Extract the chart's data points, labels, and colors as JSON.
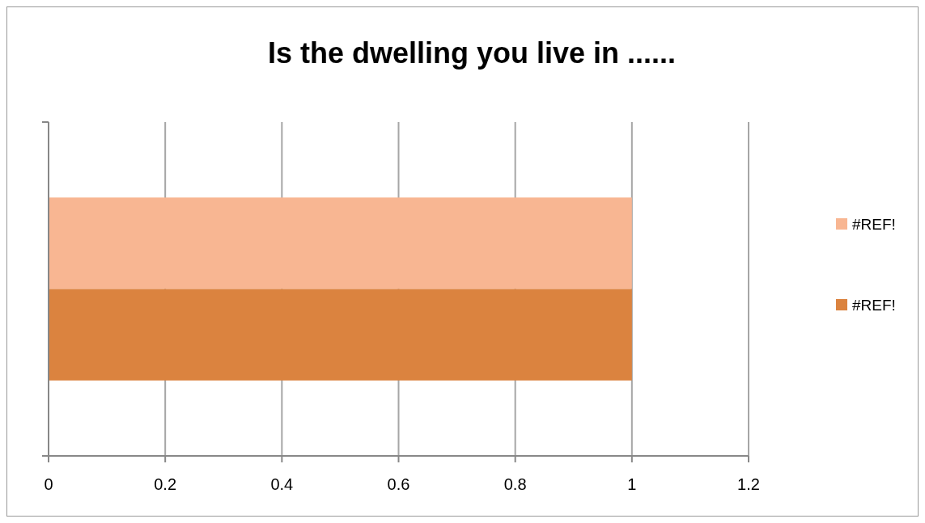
{
  "chart_data": {
    "type": "bar",
    "orientation": "horizontal",
    "title": "Is the dwelling you live in ......",
    "categories": [
      null
    ],
    "series": [
      {
        "name": "#REF!",
        "color": "#f8b692",
        "values": [
          1
        ]
      },
      {
        "name": "#REF!",
        "color": "#db833f",
        "values": [
          1
        ]
      }
    ],
    "xlim": [
      0,
      1.2
    ],
    "xticks": [
      0,
      0.2,
      0.4,
      0.6,
      0.8,
      1,
      1.2
    ],
    "grid": "x",
    "legend": "right"
  }
}
